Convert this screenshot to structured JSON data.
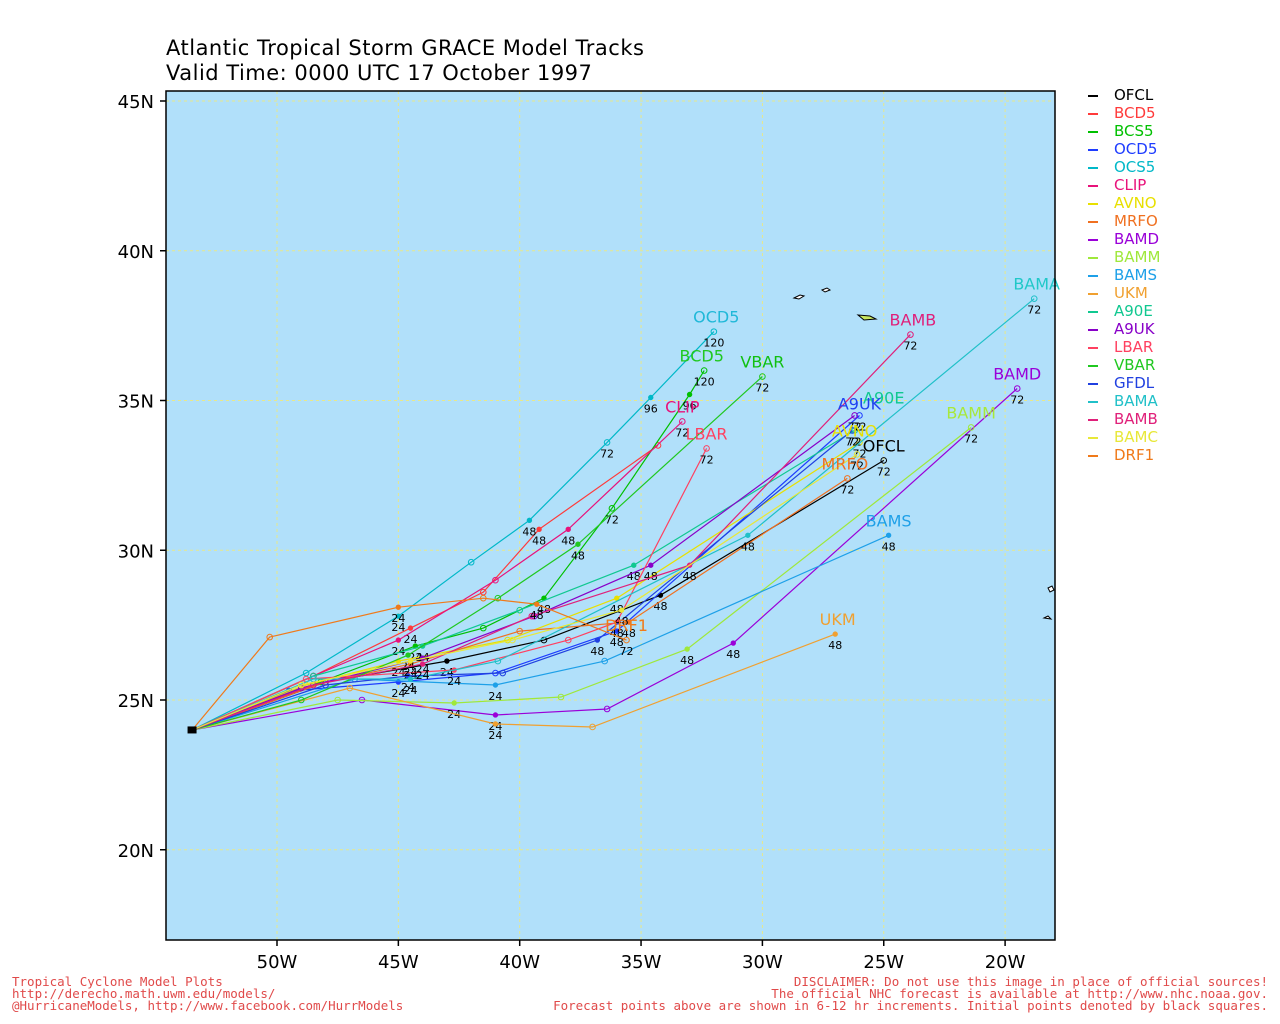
{
  "header": {
    "title": "Atlantic Tropical Storm GRACE Model Tracks",
    "valid_time": "Valid Time: 0000 UTC 17 October 1997"
  },
  "map": {
    "lon_range": [
      -55,
      -18
    ],
    "lat_range": [
      17,
      45.5
    ],
    "lon_ticks": [
      {
        "lon": -50,
        "label": "50W"
      },
      {
        "lon": -45,
        "label": "45W"
      },
      {
        "lon": -40,
        "label": "40W"
      },
      {
        "lon": -35,
        "label": "35W"
      },
      {
        "lon": -30,
        "label": "30W"
      },
      {
        "lon": -25,
        "label": "25W"
      },
      {
        "lon": -20,
        "label": "20W"
      }
    ],
    "lat_ticks": [
      {
        "lat": 20,
        "label": "20N"
      },
      {
        "lat": 25,
        "label": "25N"
      },
      {
        "lat": 30,
        "label": "30N"
      },
      {
        "lat": 35,
        "label": "35N"
      },
      {
        "lat": 40,
        "label": "40N"
      },
      {
        "lat": 45,
        "label": "45N"
      }
    ],
    "ocean_color": "#b1e0fa",
    "grid_color": "#e8e88a",
    "grid": true,
    "start": {
      "lon": -53.5,
      "lat": 24.0
    }
  },
  "chart_data": {
    "type": "line",
    "x_axis": "longitude",
    "y_axis": "latitude",
    "forecast_hours": [
      0,
      12,
      24,
      36,
      48,
      72,
      96,
      120
    ],
    "series": [
      {
        "name": "OFCL",
        "color": "#000000",
        "points": [
          [
            -53.5,
            24.0
          ],
          [
            -48.0,
            25.6
          ],
          [
            -43.0,
            26.3
          ],
          [
            -39.0,
            27.0
          ],
          [
            -34.2,
            28.5
          ],
          [
            -25.0,
            33.0
          ]
        ],
        "labels": [
          "24",
          "48",
          "72"
        ]
      },
      {
        "name": "BCD5",
        "color": "#ff3a3a",
        "points": [
          [
            -53.5,
            24.0
          ],
          [
            -48.5,
            25.8
          ],
          [
            -44.5,
            27.4
          ],
          [
            -41.5,
            28.6
          ],
          [
            -39.2,
            30.7
          ],
          [
            -34.3,
            33.5
          ]
        ],
        "labels": [
          "24",
          "48"
        ]
      },
      {
        "name": "BCS5",
        "color": "#00c000",
        "points": [
          [
            -53.5,
            24.0
          ],
          [
            -48.2,
            25.6
          ],
          [
            -44.3,
            26.8
          ],
          [
            -41.5,
            27.4
          ],
          [
            -39.0,
            28.4
          ],
          [
            -36.2,
            31.4
          ],
          [
            -33.0,
            35.2
          ],
          [
            -32.4,
            36.0
          ]
        ],
        "labels": [
          "24",
          "48",
          "72",
          "96",
          "120"
        ]
      },
      {
        "name": "OCD5",
        "color": "#1e3cff",
        "points": [
          [
            -53.5,
            24.0
          ],
          [
            -49.5,
            25.3
          ],
          [
            -45.0,
            25.6
          ],
          [
            -41.0,
            25.9
          ],
          [
            -36.0,
            27.3
          ],
          [
            -26.0,
            34.5
          ]
        ],
        "labels": [
          "24",
          "48",
          "72"
        ]
      },
      {
        "name": "OCS5",
        "color": "#00b8c8",
        "points": [
          [
            -53.5,
            24.0
          ],
          [
            -48.8,
            25.9
          ],
          [
            -45.0,
            27.8
          ],
          [
            -42.0,
            29.6
          ],
          [
            -39.6,
            31.0
          ],
          [
            -36.4,
            33.6
          ],
          [
            -34.6,
            35.1
          ],
          [
            -32.0,
            37.3
          ]
        ],
        "labels": [
          "24",
          "48",
          "72",
          "96",
          "120"
        ]
      },
      {
        "name": "CLIP",
        "color": "#e8127a",
        "points": [
          [
            -53.5,
            24.0
          ],
          [
            -48.5,
            25.8
          ],
          [
            -45.0,
            27.0
          ],
          [
            -41.0,
            29.0
          ],
          [
            -38.0,
            30.7
          ],
          [
            -33.3,
            34.3
          ]
        ],
        "labels": [
          "24",
          "48",
          "72"
        ]
      },
      {
        "name": "AVNO",
        "color": "#e8e000",
        "points": [
          [
            -53.5,
            24.0
          ],
          [
            -48.8,
            25.5
          ],
          [
            -45.0,
            26.3
          ],
          [
            -40.5,
            27.0
          ],
          [
            -36.0,
            28.4
          ],
          [
            -26.0,
            33.6
          ]
        ],
        "labels": [
          "24",
          "48",
          "72"
        ]
      },
      {
        "name": "MRFO",
        "color": "#f07020",
        "points": [
          [
            -53.5,
            24.0
          ],
          [
            -48.0,
            25.6
          ],
          [
            -44.5,
            26.2
          ],
          [
            -40.0,
            27.3
          ],
          [
            -35.5,
            27.6
          ],
          [
            -26.5,
            32.4
          ]
        ],
        "labels": [
          "24",
          "48",
          "72"
        ]
      },
      {
        "name": "BAMD",
        "color": "#9a00d8",
        "points": [
          [
            -53.5,
            24.0
          ],
          [
            -46.5,
            25.0
          ],
          [
            -41.0,
            24.5
          ],
          [
            -36.4,
            24.7
          ],
          [
            -31.2,
            26.9
          ],
          [
            -19.5,
            35.4
          ]
        ],
        "labels": [
          "24",
          "48",
          "72"
        ]
      },
      {
        "name": "BAMM",
        "color": "#9fe83a",
        "points": [
          [
            -53.5,
            24.0
          ],
          [
            -47.5,
            25.0
          ],
          [
            -42.7,
            24.9
          ],
          [
            -38.3,
            25.1
          ],
          [
            -33.1,
            26.7
          ],
          [
            -21.4,
            34.1
          ]
        ],
        "labels": [
          "24",
          "48",
          "72"
        ]
      },
      {
        "name": "BAMS",
        "color": "#1ea0e8",
        "points": [
          [
            -53.5,
            24.0
          ],
          [
            -46.8,
            25.7
          ],
          [
            -41.0,
            25.5
          ],
          [
            -36.5,
            26.3
          ],
          [
            -24.8,
            30.5
          ]
        ],
        "labels": [
          "24",
          "48",
          "72"
        ]
      },
      {
        "name": "UKM",
        "color": "#f0a030",
        "points": [
          [
            -53.5,
            24.0
          ],
          [
            -47.0,
            25.4
          ],
          [
            -41.0,
            24.2
          ],
          [
            -37.0,
            24.1
          ],
          [
            -27.0,
            27.2
          ]
        ],
        "labels": [
          "24",
          "48",
          "72"
        ]
      },
      {
        "name": "A90E",
        "color": "#10c890",
        "points": [
          [
            -53.5,
            24.0
          ],
          [
            -48.5,
            25.8
          ],
          [
            -44.0,
            26.8
          ],
          [
            -40.0,
            28.0
          ],
          [
            -35.3,
            29.5
          ],
          [
            -26.2,
            34.0
          ]
        ],
        "labels": [
          "24",
          "48",
          "72"
        ]
      },
      {
        "name": "A9UK",
        "color": "#8800c8",
        "points": [
          [
            -53.5,
            24.0
          ],
          [
            -49.0,
            25.4
          ],
          [
            -44.0,
            26.4
          ],
          [
            -39.4,
            27.8
          ],
          [
            -34.6,
            29.5
          ],
          [
            -26.2,
            34.5
          ]
        ],
        "labels": [
          "24",
          "48",
          "72"
        ]
      },
      {
        "name": "LBAR",
        "color": "#ff4060",
        "points": [
          [
            -53.5,
            24.0
          ],
          [
            -48.8,
            25.7
          ],
          [
            -42.7,
            26.0
          ],
          [
            -38.0,
            27.0
          ],
          [
            -36.0,
            27.6
          ],
          [
            -32.3,
            33.4
          ]
        ],
        "labels": [
          "24",
          "48",
          "72"
        ]
      },
      {
        "name": "VBAR",
        "color": "#20c820",
        "points": [
          [
            -53.5,
            24.0
          ],
          [
            -49.0,
            25.0
          ],
          [
            -44.6,
            26.5
          ],
          [
            -40.9,
            28.4
          ],
          [
            -37.6,
            30.2
          ],
          [
            -30.0,
            35.8
          ]
        ],
        "labels": [
          "24",
          "48",
          "72"
        ]
      },
      {
        "name": "GFDL",
        "color": "#2040e0",
        "points": [
          [
            -53.5,
            24.0
          ],
          [
            -48.0,
            25.5
          ],
          [
            -44.6,
            25.8
          ],
          [
            -40.7,
            25.9
          ],
          [
            -36.8,
            27.0
          ],
          [
            -26.3,
            34.0
          ]
        ],
        "labels": [
          "24",
          "48",
          "72"
        ]
      },
      {
        "name": "BAMA",
        "color": "#20c0c8",
        "points": [
          [
            -53.5,
            24.0
          ],
          [
            -48.5,
            25.7
          ],
          [
            -44.5,
            25.7
          ],
          [
            -40.9,
            26.3
          ],
          [
            -30.6,
            30.5
          ],
          [
            -18.8,
            38.4
          ]
        ],
        "labels": [
          "24",
          "48",
          "72"
        ]
      },
      {
        "name": "BAMB",
        "color": "#e0207a",
        "points": [
          [
            -53.5,
            24.0
          ],
          [
            -48.5,
            25.5
          ],
          [
            -44.0,
            26.2
          ],
          [
            -39.5,
            27.8
          ],
          [
            -33.0,
            29.5
          ],
          [
            -23.9,
            37.2
          ]
        ],
        "labels": [
          "24",
          "48",
          "72"
        ]
      },
      {
        "name": "BAMC",
        "color": "#e8e838",
        "points": [
          [
            -53.5,
            24.0
          ],
          [
            -49.0,
            25.5
          ],
          [
            -44.5,
            26.3
          ],
          [
            -40.3,
            27.0
          ],
          [
            -35.8,
            28.0
          ],
          [
            -26.1,
            33.2
          ]
        ],
        "labels": [
          "24",
          "48",
          "72"
        ]
      },
      {
        "name": "DRF1",
        "color": "#f07a1a",
        "points": [
          [
            -53.5,
            24.0
          ],
          [
            -50.3,
            27.1
          ],
          [
            -45.0,
            28.1
          ],
          [
            -41.5,
            28.4
          ],
          [
            -39.3,
            28.2
          ],
          [
            -35.6,
            27.0
          ]
        ],
        "labels": [
          "24",
          "48",
          "72"
        ]
      }
    ],
    "end_labels": [
      {
        "text": "OCD5",
        "color": "#20b8d8",
        "lon": -31.9,
        "lat": 37.6
      },
      {
        "text": "BCD5",
        "color": "#20c820",
        "lon": -32.5,
        "lat": 36.3
      },
      {
        "text": "VBAR",
        "color": "#10c010",
        "lon": -30.0,
        "lat": 36.1
      },
      {
        "text": "BAMA",
        "color": "#20c8c8",
        "lon": -18.7,
        "lat": 38.7
      },
      {
        "text": "BAMB",
        "color": "#e0207a",
        "lon": -23.8,
        "lat": 37.5
      },
      {
        "text": "BAMD",
        "color": "#9a00d8",
        "lon": -19.5,
        "lat": 35.7
      },
      {
        "text": "BAMM",
        "color": "#a8e83a",
        "lon": -21.4,
        "lat": 34.4
      },
      {
        "text": "A90E",
        "color": "#10c890",
        "lon": -25.0,
        "lat": 34.9
      },
      {
        "text": "A9UK",
        "color": "#2040f0",
        "lon": -26.0,
        "lat": 34.7
      },
      {
        "text": "CLIP",
        "color": "#e8127a",
        "lon": -33.3,
        "lat": 34.6
      },
      {
        "text": "LBAR",
        "color": "#ff4060",
        "lon": -32.3,
        "lat": 33.7
      },
      {
        "text": "AVNO",
        "color": "#e8e000",
        "lon": -26.2,
        "lat": 33.8
      },
      {
        "text": "OFCL",
        "color": "#000000",
        "lon": -25.0,
        "lat": 33.3
      },
      {
        "text": "MRFO",
        "color": "#f07020",
        "lon": -26.6,
        "lat": 32.7
      },
      {
        "text": "BAMS",
        "color": "#1ea0e8",
        "lon": -24.8,
        "lat": 30.8
      },
      {
        "text": "DRF1",
        "color": "#f07a1a",
        "lon": -35.6,
        "lat": 27.3
      },
      {
        "text": "UKM",
        "color": "#f0a030",
        "lon": -26.9,
        "lat": 27.5
      }
    ]
  },
  "legend": [
    {
      "name": "OFCL",
      "color": "#000000"
    },
    {
      "name": "BCD5",
      "color": "#ff3a3a"
    },
    {
      "name": "BCS5",
      "color": "#00c000"
    },
    {
      "name": "OCD5",
      "color": "#1e3cff"
    },
    {
      "name": "OCS5",
      "color": "#00b8c8"
    },
    {
      "name": "CLIP",
      "color": "#e8127a"
    },
    {
      "name": "AVNO",
      "color": "#e8e000"
    },
    {
      "name": "MRFO",
      "color": "#f07020"
    },
    {
      "name": "BAMD",
      "color": "#9a00d8"
    },
    {
      "name": "BAMM",
      "color": "#9fe83a"
    },
    {
      "name": "BAMS",
      "color": "#1ea0e8"
    },
    {
      "name": "UKM",
      "color": "#f0a030"
    },
    {
      "name": "A90E",
      "color": "#10c890"
    },
    {
      "name": "A9UK",
      "color": "#8800c8"
    },
    {
      "name": "LBAR",
      "color": "#ff4060"
    },
    {
      "name": "VBAR",
      "color": "#20c820"
    },
    {
      "name": "GFDL",
      "color": "#2040e0"
    },
    {
      "name": "BAMA",
      "color": "#20c0c8"
    },
    {
      "name": "BAMB",
      "color": "#e0207a"
    },
    {
      "name": "BAMC",
      "color": "#e8e838"
    },
    {
      "name": "DRF1",
      "color": "#f07a1a"
    }
  ],
  "footer": {
    "left_line1": "Tropical Cyclone Model Plots",
    "left_line2": "http://derecho.math.uwm.edu/models/",
    "left_line3": "@HurricaneModels, http://www.facebook.com/HurrModels",
    "right_line1": "DISCLAIMER: Do not use this image in place of official sources!",
    "right_line2": "The official NHC forecast is available at http://www.nhc.noaa.gov.",
    "right_line3": "Forecast points above are shown in 6-12 hr increments. Initial points denoted by black squares."
  }
}
